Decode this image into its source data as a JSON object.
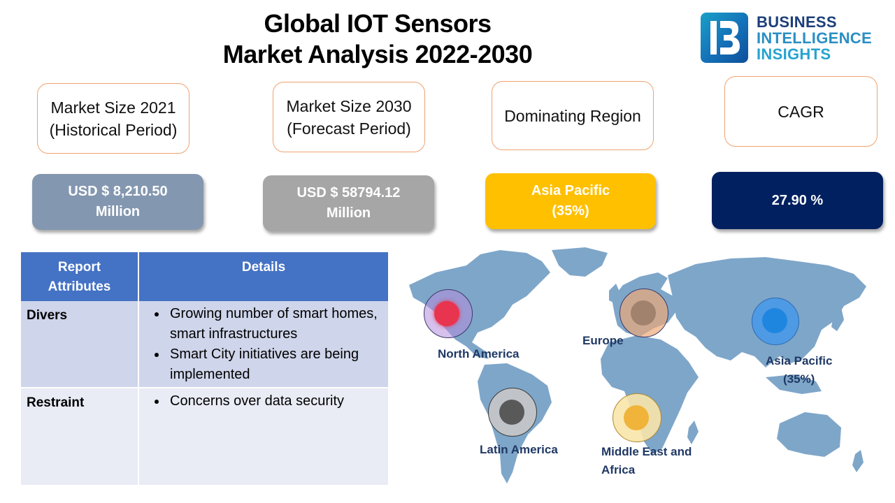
{
  "title": {
    "line1": "Global IOT Sensors",
    "line2": "Market Analysis 2022-2030"
  },
  "logo": {
    "line1": "BUSINESS",
    "line2": "INTELLIGENCE",
    "line3": "INSIGHTS",
    "mark_icon": "bi-logo-icon"
  },
  "cards": [
    {
      "label_line1": "Market Size 2021",
      "label_line2": "(Historical Period)",
      "value_line1": "USD $ 8,210.50",
      "value_line2": "Million",
      "color": "#8497b0"
    },
    {
      "label_line1": "Market Size 2030",
      "label_line2": "(Forecast Period)",
      "value_line1": "USD $ 58794.12",
      "value_line2": "Million",
      "color": "#a6a6a6"
    },
    {
      "label_line1": "Dominating Region",
      "label_line2": "",
      "value_line1": "Asia Pacific",
      "value_line2": "(35%)",
      "color": "#ffc000"
    },
    {
      "label_line1": "CAGR",
      "label_line2": "",
      "value_line1": "27.90 %",
      "value_line2": "",
      "color": "#002060"
    }
  ],
  "table": {
    "headers": {
      "col1_line1": "Report",
      "col1_line2": "Attributes",
      "col2": "Details"
    },
    "rows": [
      {
        "attribute": "Divers",
        "details": [
          "Growing number of smart homes, smart infrastructures",
          "Smart City initiatives are being implemented"
        ]
      },
      {
        "attribute": "Restraint",
        "details": [
          "Concerns over data security"
        ]
      }
    ]
  },
  "map": {
    "regions": [
      {
        "name": "North America",
        "color": "#e8344e"
      },
      {
        "name": "Europe",
        "color": "#a0826d"
      },
      {
        "name": "Asia Pacific",
        "share": "(35%)",
        "color": "#1f86e0"
      },
      {
        "name": "Latin America",
        "color": "#595959"
      },
      {
        "name": "Middle East and",
        "name2": "Africa",
        "color": "#f0b43a"
      }
    ],
    "land_color": "#7ea6c9"
  }
}
